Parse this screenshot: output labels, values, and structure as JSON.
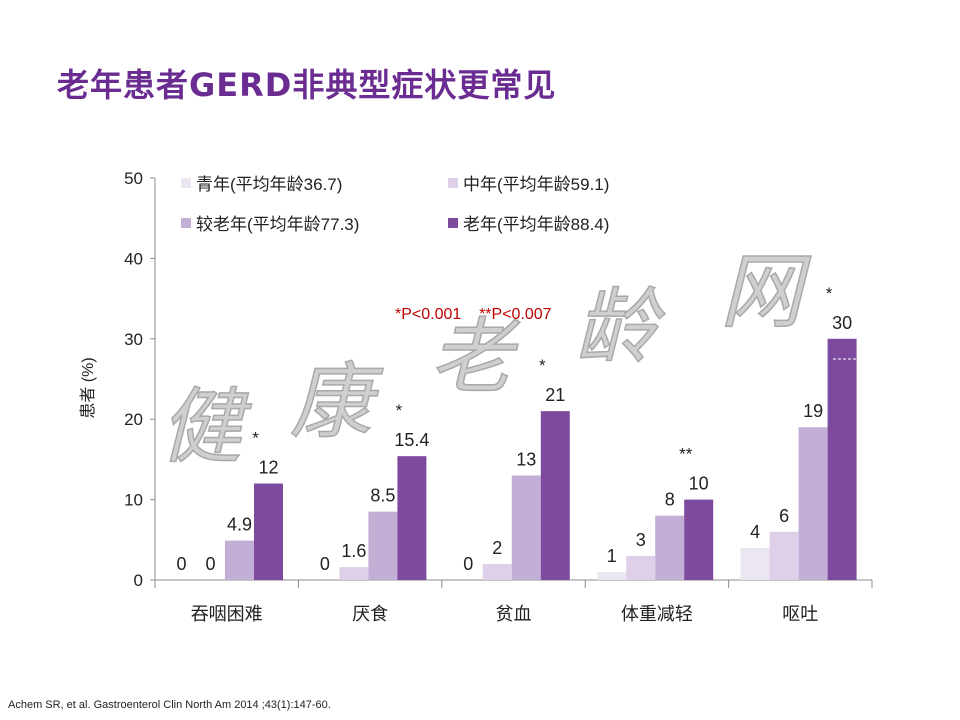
{
  "title": "老年患者GERD非典型症状更常见",
  "footnote": "Achem SR, et al. Gastroenterol Clin North Am 2014 ;43(1):147-60.",
  "watermark": [
    "健",
    "康",
    "老",
    "龄",
    "网"
  ],
  "significance_note": "*P<0.001    **P<0.007",
  "colors": {
    "title": "#6a2c91",
    "note": "#c00000"
  },
  "chart_data": {
    "type": "bar",
    "ylabel": "患者 (%)",
    "ylim": [
      0,
      50
    ],
    "yticks": [
      0,
      10,
      20,
      30,
      40,
      50
    ],
    "categories": [
      "吞咽困难",
      "厌食",
      "贫血",
      "体重减轻",
      "呕吐"
    ],
    "series": [
      {
        "name": "青年(平均年龄36.7)",
        "color": "#ece6f2",
        "values": [
          0,
          0,
          0,
          1,
          4
        ],
        "labels": [
          "0",
          "0",
          "0",
          "1",
          "4"
        ]
      },
      {
        "name": "中年(平均年龄59.1)",
        "color": "#ddd0e8",
        "values": [
          0,
          1.6,
          2,
          3,
          6
        ],
        "labels": [
          "0",
          "1.6",
          "2",
          "3",
          "6"
        ]
      },
      {
        "name": "较老年(平均年龄77.3)",
        "color": "#c3aed6",
        "values": [
          4.9,
          8.5,
          13,
          8,
          19
        ],
        "labels": [
          "4.9",
          "8.5",
          "13",
          "8",
          "19"
        ]
      },
      {
        "name": "老年(平均年龄88.4)",
        "color": "#7e4a9e",
        "values": [
          12,
          15.4,
          21,
          10,
          30
        ],
        "labels": [
          "12",
          "15.4",
          "21",
          "10",
          "30"
        ]
      }
    ],
    "significance": [
      "*",
      "*",
      "*",
      "**",
      "*"
    ],
    "legend_position": "top"
  }
}
